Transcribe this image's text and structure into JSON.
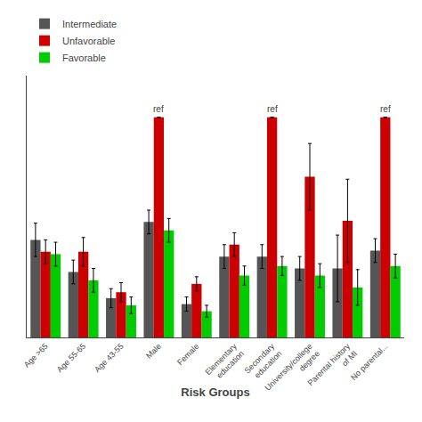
{
  "chart_data": {
    "type": "bar",
    "categories": [
      "Age >65",
      "Age 55-65",
      "Age 43-55",
      "Male",
      "Female",
      "Elementary\neducation",
      "Secondary\neducation",
      "University/college\ndegree",
      "Parental history\nof MI",
      "No parental..."
    ],
    "series": [
      {
        "name": "Intermediate",
        "color": "#555555",
        "values": [
          0.82,
          0.55,
          0.33,
          0.97,
          0.28,
          0.68,
          0.68,
          0.58,
          0.58,
          0.73
        ],
        "errors": [
          0.14,
          0.1,
          0.08,
          0.1,
          0.06,
          0.1,
          0.1,
          0.1,
          0.28,
          0.1
        ]
      },
      {
        "name": "Unfavorable",
        "color": "#CC0000",
        "values": [
          0.72,
          0.72,
          0.38,
          1.85,
          0.45,
          0.78,
          1.85,
          1.35,
          0.98,
          1.85
        ],
        "errors": [
          0.1,
          0.12,
          0.08,
          0.0,
          0.06,
          0.1,
          0.0,
          0.28,
          0.35,
          0.0
        ]
      },
      {
        "name": "Favorable",
        "color": "#00CC00",
        "values": [
          0.7,
          0.48,
          0.27,
          0.9,
          0.22,
          0.52,
          0.6,
          0.52,
          0.42,
          0.6
        ],
        "errors": [
          0.1,
          0.1,
          0.07,
          0.1,
          0.05,
          0.08,
          0.08,
          0.1,
          0.15,
          0.1
        ]
      }
    ],
    "xlabel": "Risk Groups",
    "ylim": [
      0,
      2.2
    ],
    "tick_labels": "x",
    "grid": false,
    "legend": "top-left",
    "annotations": [
      {
        "text": "ref",
        "category": "Male",
        "series": "Unfavorable"
      },
      {
        "text": "ref",
        "category": "Secondary\neducation",
        "series": "Unfavorable"
      },
      {
        "text": "ref",
        "category": "No parental...",
        "series": "Unfavorable"
      }
    ]
  }
}
